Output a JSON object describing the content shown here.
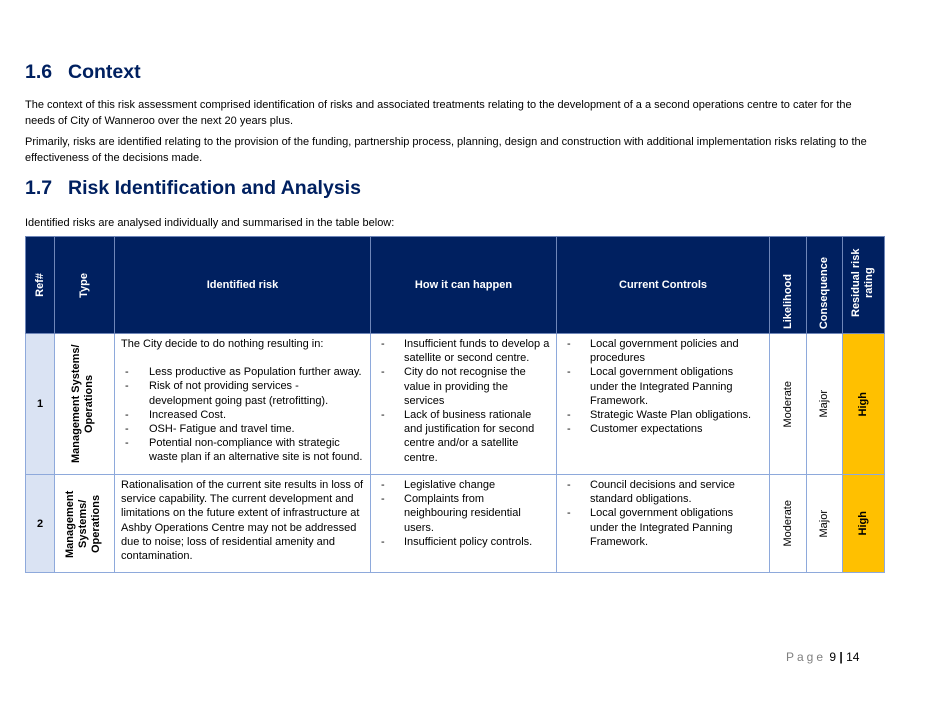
{
  "section_context": {
    "number": "1.6",
    "title": "Context",
    "paragraphs": [
      "The context of this risk assessment comprised identification of risks and associated treatments relating to the development of a a second operations centre to cater for the needs of City of Wanneroo over the next 20 years plus.",
      "Primarily, risks are identified relating to the provision of the funding, partnership process, planning, design and construction with additional implementation risks relating to the effectiveness of the decisions made."
    ]
  },
  "section_risk": {
    "number": "1.7",
    "title": "Risk Identification and Analysis",
    "intro": "Identified risks are analysed individually and summarised in the table below:"
  },
  "table": {
    "headers": [
      "Ref#",
      "Type",
      "Identified risk",
      "How it can happen",
      "Current Controls",
      "Likelihood",
      "Consequence",
      "Residual risk rating"
    ],
    "rows": [
      {
        "ref": "1",
        "type": "Management Systems/ Operations",
        "risk_intro": "The City decide to do nothing resulting in:",
        "risk_items": [
          "Less productive as Population further away.",
          "Risk of not providing services - development going past (retrofitting).",
          "Increased Cost.",
          "OSH- Fatigue and travel time.",
          "Potential non-compliance with strategic waste plan if an alternative site is not found."
        ],
        "how": [
          "Insufficient funds to develop a satellite or second centre.",
          "City do not recognise the value in providing the services",
          "Lack of business rationale and justification for second centre and/or a satellite centre."
        ],
        "controls": [
          "Local government policies and procedures",
          "Local government obligations under the Integrated Panning Framework.",
          "Strategic Waste Plan obligations.",
          "Customer expectations"
        ],
        "likelihood": "Moderate",
        "consequence": "Major",
        "rating": "High"
      },
      {
        "ref": "2",
        "type": "Management Systems/ Operations",
        "risk_text": "Rationalisation of the current site results in loss of service capability. The current development and limitations on the future extent of infrastructure at Ashby Operations Centre may not be addressed due to noise; loss of residential amenity and contamination.",
        "how": [
          "Legislative change",
          "Complaints from neighbouring residential users.",
          "Insufficient policy controls."
        ],
        "controls": [
          "Council decisions and service standard obligations.",
          "Local government obligations under the Integrated Panning Framework."
        ],
        "likelihood": "Moderate",
        "consequence": "Major",
        "rating": "High"
      }
    ]
  },
  "footer": {
    "page_label": "Page",
    "page": "9",
    "separator": "|",
    "total": "14"
  },
  "colors": {
    "heading": "#002060",
    "header_bg": "#002060",
    "high": "#ffc000",
    "ref_bg": "#dae3f3"
  }
}
